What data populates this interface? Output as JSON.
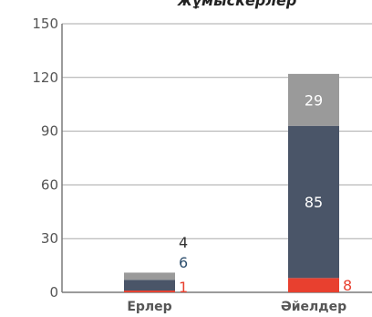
{
  "chart_data": {
    "type": "bar",
    "stacked": true,
    "title": "жұмыскерлер",
    "categories": [
      "Ерлер",
      "Әйелдер"
    ],
    "series": [
      {
        "values": [
          1,
          8
        ],
        "color": "#e8402f"
      },
      {
        "values": [
          6,
          85
        ],
        "color": "#4a5568"
      },
      {
        "values": [
          4,
          29
        ],
        "color": "#9a9a9a"
      }
    ],
    "ylim": [
      0,
      150
    ],
    "yticks": [
      0,
      30,
      60,
      90,
      120,
      150
    ],
    "grid": true,
    "legend": "none"
  }
}
